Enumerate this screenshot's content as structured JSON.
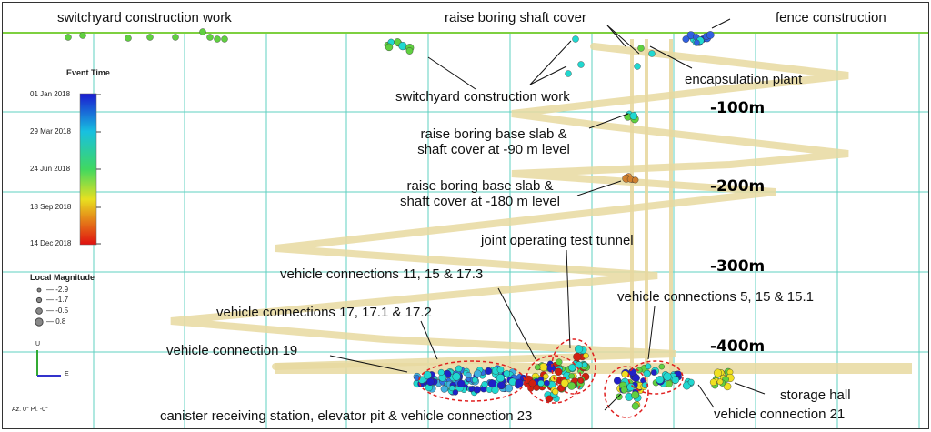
{
  "annotations": {
    "switchyard_top": "switchyard construction work",
    "raise_cover": "raise boring shaft cover",
    "fence": "fence construction",
    "switchyard_mid": "switchyard construction work",
    "encapsulation": "encapsulation plant",
    "base_slab_90_l1": "raise boring base slab &",
    "base_slab_90_l2": "shaft cover at -90 m level",
    "base_slab_180_l1": "raise boring base slab &",
    "base_slab_180_l2": "shaft cover at -180 m level",
    "joint_tunnel": "joint operating test tunnel",
    "vc_11_15": "vehicle connections 11, 15 & 17.3",
    "vc_5_15": "vehicle connections 5, 15 & 15.1",
    "vc_17": "vehicle connections 17, 17.1 & 17.2",
    "vc_19": "vehicle connection 19",
    "storage_hall": "storage hall",
    "vc_21": "vehicle connection 21",
    "canister": "canister receiving station, elevator pit & vehicle connection 23"
  },
  "depth_labels": [
    "-100m",
    "-200m",
    "-300m",
    "-400m"
  ],
  "legend": {
    "time_title": "Event Time",
    "time_ticks": [
      "01 Jan 2018",
      "29 Mar 2018",
      "24 Jun 2018",
      "18 Sep 2018",
      "14 Dec 2018"
    ],
    "magnitude_title": "Local Magnitude",
    "magnitude_values": [
      "-2.9",
      "-1.7",
      "-0.5",
      "0.8"
    ]
  },
  "axis": {
    "up_label": "U",
    "east_label": "E",
    "view_text": "Az. 0° Pl. -0°"
  },
  "colors": {
    "early": "#2020c8",
    "mid": "#20d8d0",
    "later": "#60d040",
    "late": "#f0e020",
    "latest": "#d02010",
    "tunnel": "#e8d9a0",
    "grid": "#5fd0c0",
    "surface": "#7ed040",
    "ellipse": "#e02020"
  }
}
